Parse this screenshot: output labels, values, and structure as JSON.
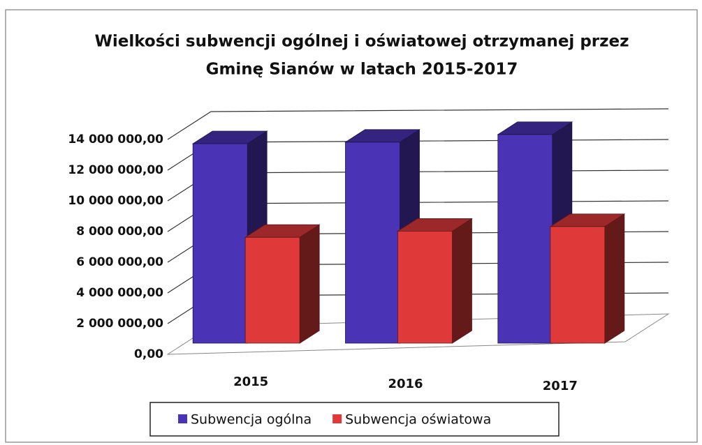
{
  "chart_data": {
    "type": "bar3d",
    "title": [
      "Wielkości subwencji ogólnej i oświatowej otrzymanej przez",
      "Gminę Sianów w latach 2015-2017"
    ],
    "categories": [
      "2015",
      "2016",
      "2017"
    ],
    "series": [
      {
        "name": "Subwencja ogólna",
        "color": "#4b33b5",
        "values": [
          13000000,
          13100000,
          13600000
        ]
      },
      {
        "name": "Subwencja oświatowa",
        "color": "#e0393a",
        "values": [
          6900000,
          7300000,
          7600000
        ]
      }
    ],
    "ylim": [
      0,
      14000000
    ],
    "yticks": [
      {
        "value": 0,
        "label": "0,00"
      },
      {
        "value": 2000000,
        "label": "2 000 000,00"
      },
      {
        "value": 4000000,
        "label": "4 000 000,00"
      },
      {
        "value": 6000000,
        "label": "6 000 000,00"
      },
      {
        "value": 8000000,
        "label": "8 000 000,00"
      },
      {
        "value": 10000000,
        "label": "10 000 000,00"
      },
      {
        "value": 12000000,
        "label": "12 000 000,00"
      },
      {
        "value": 14000000,
        "label": "14 000 000,00"
      }
    ],
    "grid": true,
    "legend": "bottom"
  }
}
